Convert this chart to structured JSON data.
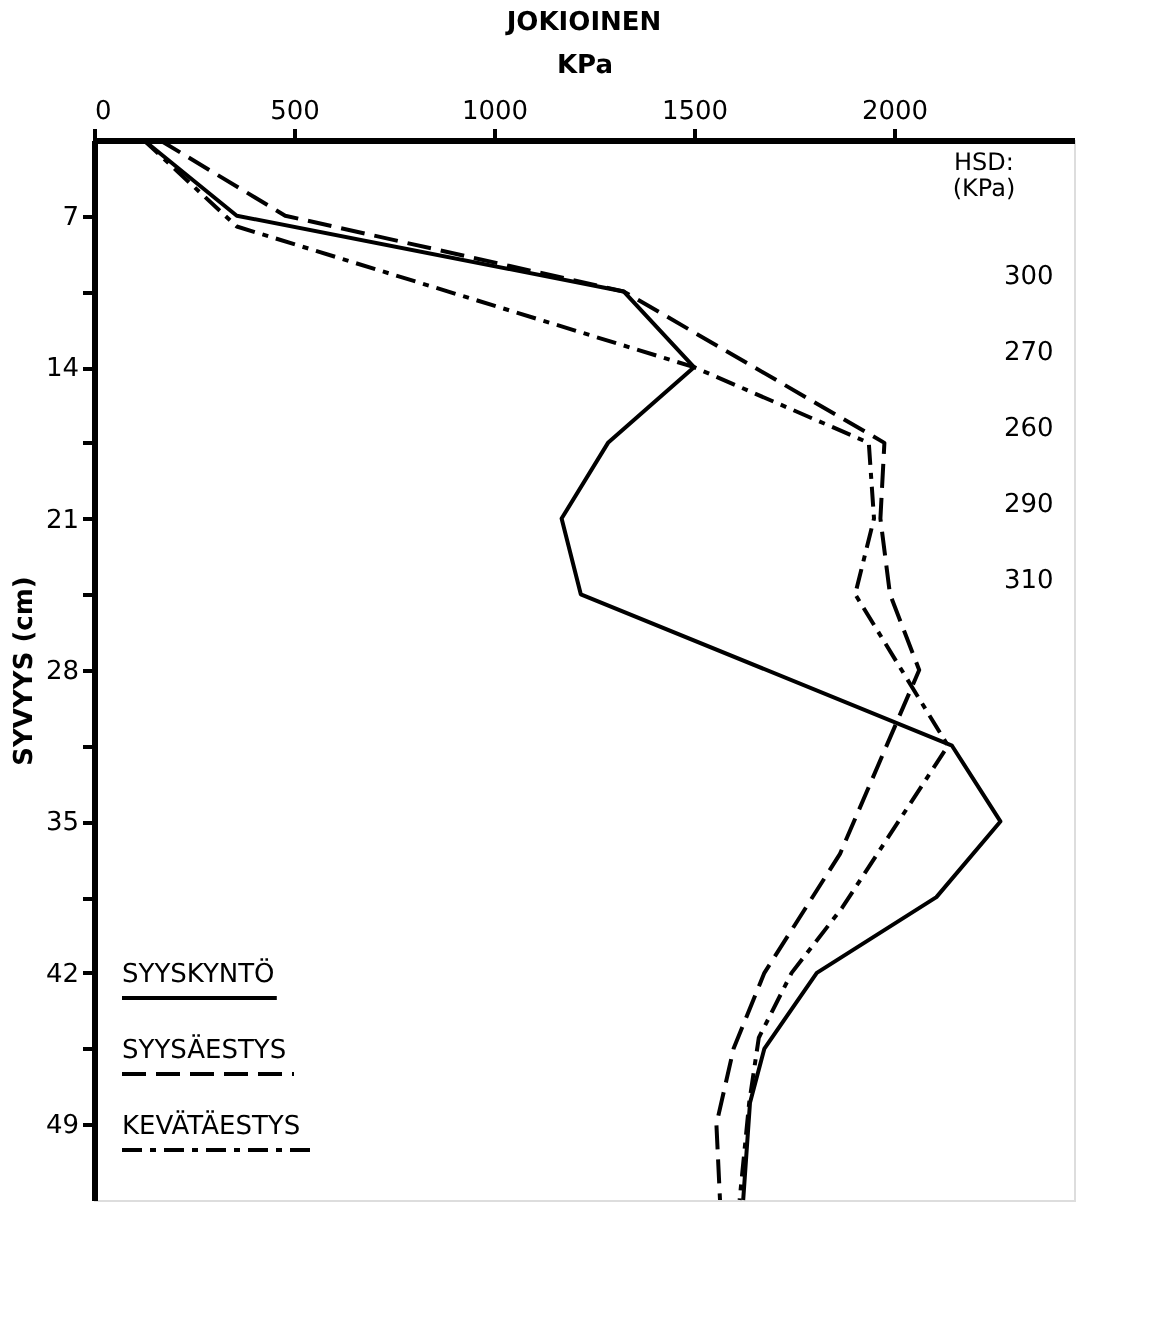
{
  "chart_data": {
    "type": "line",
    "title": "JOKIOINEN",
    "xlabel": "KPa",
    "ylabel": "SYVYYS (cm)",
    "xlim": [
      0,
      2450
    ],
    "xticks": [
      0,
      500,
      1000,
      1500,
      2000
    ],
    "ylim": [
      52.5,
      3.5
    ],
    "yticks": [
      7,
      {
        "value": 10.5,
        "label": null
      },
      14,
      {
        "value": 17.5,
        "label": null
      },
      21,
      {
        "value": 24.5,
        "label": null
      },
      28,
      {
        "value": 31.5,
        "label": null
      },
      35,
      {
        "value": 38.5,
        "label": null
      },
      42,
      {
        "value": 45.5,
        "label": null
      },
      49
    ],
    "grid": false,
    "legend": "bottom left",
    "marker": "none",
    "series": [
      {
        "name": "SYYSKYNTÖ",
        "color": "#000000",
        "line_style": "solid",
        "x": [
          124,
          357,
          1324,
          1500,
          1285,
          1169,
          1217,
          2145,
          2266,
          2106,
          1807,
          1676,
          1640,
          1623
        ],
        "values": [
          3.5,
          7,
          10.5,
          14,
          17.5,
          21,
          24.5,
          31.5,
          35,
          38.5,
          42,
          45.5,
          48,
          52.5
        ]
      },
      {
        "name": "SYYSÄESTYS",
        "color": "#000000",
        "line_style": "dashed",
        "x": [
          164,
          478,
          1324,
          1976,
          1966,
          1990,
          2063,
          1865,
          1676,
          1599,
          1556,
          1565
        ],
        "values": [
          3.5,
          7,
          10.5,
          17.5,
          21,
          24.5,
          28,
          36.5,
          42,
          45.5,
          49,
          52.5
        ]
      },
      {
        "name": "KEVÄTÄESTYS",
        "color": "#000000",
        "line_style": "dashdot",
        "x": [
          124,
          357,
          1500,
          1937,
          1950,
          1903,
          2135,
          1870,
          1744,
          1662,
          1638,
          1614
        ],
        "values": [
          3.5,
          7.5,
          14,
          17.5,
          21,
          24.5,
          31.5,
          39,
          42,
          45,
          48,
          52.5
        ]
      }
    ],
    "annotations": [
      "HSD:\n(KPa)",
      "300",
      "270",
      "260",
      "290",
      "310"
    ]
  }
}
